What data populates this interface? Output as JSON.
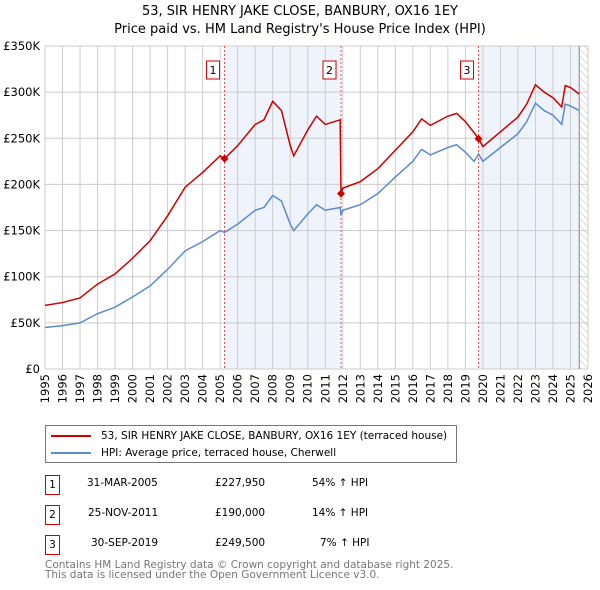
{
  "chart_data": {
    "type": "line",
    "title": "53, SIR HENRY JAKE CLOSE, BANBURY, OX16 1EY",
    "subtitle": "Price paid vs. HM Land Registry's House Price Index (HPI)",
    "xlim": [
      1995,
      2026
    ],
    "ylim": [
      0,
      350000
    ],
    "x_ticks": [
      "1995",
      "1996",
      "1997",
      "1998",
      "1999",
      "2000",
      "2001",
      "2002",
      "2003",
      "2004",
      "2005",
      "2006",
      "2007",
      "2008",
      "2009",
      "2010",
      "2011",
      "2012",
      "2013",
      "2014",
      "2015",
      "2016",
      "2017",
      "2018",
      "2019",
      "2020",
      "2021",
      "2022",
      "2023",
      "2024",
      "2025",
      "2026"
    ],
    "y_ticks": [
      {
        "v": 0,
        "label": "£0"
      },
      {
        "v": 50000,
        "label": "£50K"
      },
      {
        "v": 100000,
        "label": "£100K"
      },
      {
        "v": 150000,
        "label": "£150K"
      },
      {
        "v": 200000,
        "label": "£200K"
      },
      {
        "v": 250000,
        "label": "£250K"
      },
      {
        "v": 300000,
        "label": "£300K"
      },
      {
        "v": 350000,
        "label": "£350K"
      }
    ],
    "grid": true,
    "series": [
      {
        "name": "53, SIR HENRY JAKE CLOSE, BANBURY, OX16 1EY (terraced house)",
        "color": "#cc0000",
        "x": [
          1995,
          1996,
          1997,
          1998,
          1999,
          2000,
          2001,
          2002,
          2003,
          2004,
          2005,
          2005.25,
          2006,
          2007,
          2007.5,
          2008,
          2008.5,
          2009,
          2009.2,
          2010,
          2010.5,
          2011,
          2011.85,
          2011.9,
          2012,
          2013,
          2014,
          2015,
          2016,
          2016.5,
          2017,
          2018,
          2018.5,
          2019,
          2019.5,
          2019.75,
          2020,
          2021,
          2022,
          2022.5,
          2023,
          2023.5,
          2024,
          2024.5,
          2024.7,
          2025,
          2025.5
        ],
        "y": [
          69000,
          72000,
          77000,
          92000,
          103000,
          120000,
          139000,
          166000,
          197000,
          213000,
          231000,
          227950,
          242000,
          265000,
          270000,
          290000,
          280000,
          242000,
          231000,
          259000,
          274000,
          265000,
          270000,
          190000,
          196000,
          203000,
          217000,
          237000,
          257000,
          271000,
          264000,
          274000,
          277000,
          268000,
          256000,
          249500,
          241000,
          257000,
          273000,
          287000,
          308000,
          300000,
          294000,
          284000,
          307000,
          305000,
          298000
        ]
      },
      {
        "name": "HPI: Average price, terraced house, Cherwell",
        "color": "#5b8bd0",
        "x": [
          1995,
          1996,
          1997,
          1998,
          1999,
          2000,
          2001,
          2002,
          2003,
          2004,
          2005,
          2005.25,
          2006,
          2007,
          2007.5,
          2008,
          2008.5,
          2009,
          2009.2,
          2010,
          2010.5,
          2011,
          2011.85,
          2011.9,
          2012,
          2013,
          2014,
          2015,
          2016,
          2016.5,
          2017,
          2018,
          2018.5,
          2019,
          2019.5,
          2019.75,
          2020,
          2021,
          2022,
          2022.5,
          2023,
          2023.5,
          2024,
          2024.5,
          2024.7,
          2025,
          2025.5
        ],
        "y": [
          45000,
          47000,
          50000,
          60000,
          67000,
          78000,
          90000,
          108000,
          128000,
          138000,
          150000,
          148000,
          157000,
          172000,
          175000,
          188000,
          182000,
          157000,
          150000,
          168000,
          178000,
          172000,
          175000,
          167000,
          172000,
          178000,
          190000,
          208000,
          225000,
          238000,
          232000,
          240000,
          243000,
          235000,
          225000,
          233000,
          225000,
          240000,
          255000,
          268000,
          288000,
          280000,
          275000,
          265000,
          287000,
          285000,
          280000
        ]
      }
    ],
    "sales": [
      {
        "label": "1",
        "x": 2005.25,
        "y": 227950,
        "date": "31-MAR-2005",
        "price": "£227,950",
        "hpi": "54% ↑ HPI"
      },
      {
        "label": "2",
        "x": 2011.9,
        "y": 190000,
        "date": "25-NOV-2011",
        "price": "£190,000",
        "hpi": "14% ↑ HPI"
      },
      {
        "label": "3",
        "x": 2019.75,
        "y": 249500,
        "date": "30-SEP-2019",
        "price": "£249,500",
        "hpi": "7% ↑ HPI"
      }
    ],
    "shaded": [
      [
        2005.25,
        2011.9
      ],
      [
        2019.75,
        2025.5
      ]
    ],
    "hatched_from": 2025.5,
    "legend": "below"
  },
  "footer": [
    "Contains HM Land Registry data © Crown copyright and database right 2025.",
    "This data is licensed under the Open Government Licence v3.0."
  ]
}
